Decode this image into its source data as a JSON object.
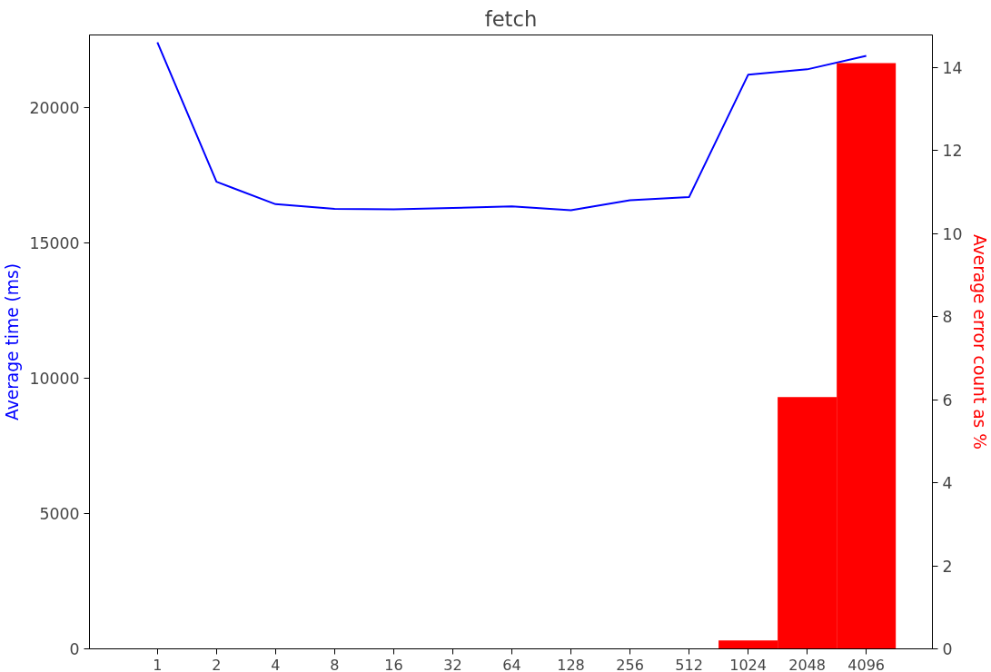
{
  "chart_data": {
    "type": "line",
    "title": "fetch",
    "ylabel": "Average time (ms)",
    "y2label": "Average error count as %",
    "categories": [
      "1",
      "2",
      "4",
      "8",
      "16",
      "32",
      "64",
      "128",
      "256",
      "512",
      "1024",
      "2048",
      "4096"
    ],
    "series": [
      {
        "color": "#0000ff",
        "values": [
          22400,
          17250,
          16420,
          16250,
          16230,
          16280,
          16340,
          16200,
          16570,
          16680,
          21200,
          21400,
          21900
        ]
      },
      {
        "type": "bar",
        "axis": "y2",
        "color": "#ff0000",
        "values": [
          0,
          0,
          0,
          0,
          0,
          0,
          0,
          0,
          0,
          0,
          0.2,
          6.06,
          14.1
        ]
      }
    ],
    "ylim": [
      0,
      22670
    ],
    "yticks": [
      0,
      5000,
      10000,
      15000,
      20000
    ],
    "y2lim": [
      0,
      14.78
    ],
    "y2ticks": [
      0,
      2,
      4,
      6,
      8,
      10,
      12,
      14
    ],
    "grid": false
  }
}
